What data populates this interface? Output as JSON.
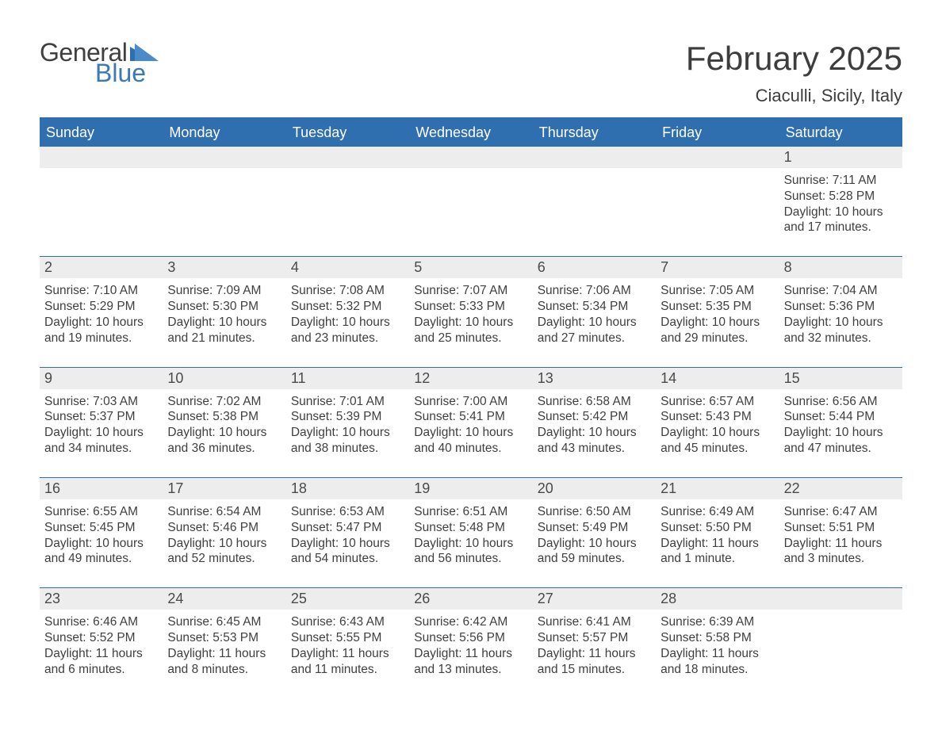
{
  "logo": {
    "text_general": "General",
    "text_blue": "Blue",
    "icon_color": "#2f6fb0"
  },
  "title": "February 2025",
  "location": "Ciaculli, Sicily, Italy",
  "colors": {
    "header_bg": "#2f6fb0",
    "header_text": "#ffffff",
    "daynum_bg": "#ededed",
    "text": "#3f3f3f",
    "rule": "#2f6fb0",
    "background": "#ffffff"
  },
  "weekdays": [
    "Sunday",
    "Monday",
    "Tuesday",
    "Wednesday",
    "Thursday",
    "Friday",
    "Saturday"
  ],
  "weeks": [
    [
      null,
      null,
      null,
      null,
      null,
      null,
      {
        "n": "1",
        "sunrise": "Sunrise: 7:11 AM",
        "sunset": "Sunset: 5:28 PM",
        "daylight": "Daylight: 10 hours and 17 minutes."
      }
    ],
    [
      {
        "n": "2",
        "sunrise": "Sunrise: 7:10 AM",
        "sunset": "Sunset: 5:29 PM",
        "daylight": "Daylight: 10 hours and 19 minutes."
      },
      {
        "n": "3",
        "sunrise": "Sunrise: 7:09 AM",
        "sunset": "Sunset: 5:30 PM",
        "daylight": "Daylight: 10 hours and 21 minutes."
      },
      {
        "n": "4",
        "sunrise": "Sunrise: 7:08 AM",
        "sunset": "Sunset: 5:32 PM",
        "daylight": "Daylight: 10 hours and 23 minutes."
      },
      {
        "n": "5",
        "sunrise": "Sunrise: 7:07 AM",
        "sunset": "Sunset: 5:33 PM",
        "daylight": "Daylight: 10 hours and 25 minutes."
      },
      {
        "n": "6",
        "sunrise": "Sunrise: 7:06 AM",
        "sunset": "Sunset: 5:34 PM",
        "daylight": "Daylight: 10 hours and 27 minutes."
      },
      {
        "n": "7",
        "sunrise": "Sunrise: 7:05 AM",
        "sunset": "Sunset: 5:35 PM",
        "daylight": "Daylight: 10 hours and 29 minutes."
      },
      {
        "n": "8",
        "sunrise": "Sunrise: 7:04 AM",
        "sunset": "Sunset: 5:36 PM",
        "daylight": "Daylight: 10 hours and 32 minutes."
      }
    ],
    [
      {
        "n": "9",
        "sunrise": "Sunrise: 7:03 AM",
        "sunset": "Sunset: 5:37 PM",
        "daylight": "Daylight: 10 hours and 34 minutes."
      },
      {
        "n": "10",
        "sunrise": "Sunrise: 7:02 AM",
        "sunset": "Sunset: 5:38 PM",
        "daylight": "Daylight: 10 hours and 36 minutes."
      },
      {
        "n": "11",
        "sunrise": "Sunrise: 7:01 AM",
        "sunset": "Sunset: 5:39 PM",
        "daylight": "Daylight: 10 hours and 38 minutes."
      },
      {
        "n": "12",
        "sunrise": "Sunrise: 7:00 AM",
        "sunset": "Sunset: 5:41 PM",
        "daylight": "Daylight: 10 hours and 40 minutes."
      },
      {
        "n": "13",
        "sunrise": "Sunrise: 6:58 AM",
        "sunset": "Sunset: 5:42 PM",
        "daylight": "Daylight: 10 hours and 43 minutes."
      },
      {
        "n": "14",
        "sunrise": "Sunrise: 6:57 AM",
        "sunset": "Sunset: 5:43 PM",
        "daylight": "Daylight: 10 hours and 45 minutes."
      },
      {
        "n": "15",
        "sunrise": "Sunrise: 6:56 AM",
        "sunset": "Sunset: 5:44 PM",
        "daylight": "Daylight: 10 hours and 47 minutes."
      }
    ],
    [
      {
        "n": "16",
        "sunrise": "Sunrise: 6:55 AM",
        "sunset": "Sunset: 5:45 PM",
        "daylight": "Daylight: 10 hours and 49 minutes."
      },
      {
        "n": "17",
        "sunrise": "Sunrise: 6:54 AM",
        "sunset": "Sunset: 5:46 PM",
        "daylight": "Daylight: 10 hours and 52 minutes."
      },
      {
        "n": "18",
        "sunrise": "Sunrise: 6:53 AM",
        "sunset": "Sunset: 5:47 PM",
        "daylight": "Daylight: 10 hours and 54 minutes."
      },
      {
        "n": "19",
        "sunrise": "Sunrise: 6:51 AM",
        "sunset": "Sunset: 5:48 PM",
        "daylight": "Daylight: 10 hours and 56 minutes."
      },
      {
        "n": "20",
        "sunrise": "Sunrise: 6:50 AM",
        "sunset": "Sunset: 5:49 PM",
        "daylight": "Daylight: 10 hours and 59 minutes."
      },
      {
        "n": "21",
        "sunrise": "Sunrise: 6:49 AM",
        "sunset": "Sunset: 5:50 PM",
        "daylight": "Daylight: 11 hours and 1 minute."
      },
      {
        "n": "22",
        "sunrise": "Sunrise: 6:47 AM",
        "sunset": "Sunset: 5:51 PM",
        "daylight": "Daylight: 11 hours and 3 minutes."
      }
    ],
    [
      {
        "n": "23",
        "sunrise": "Sunrise: 6:46 AM",
        "sunset": "Sunset: 5:52 PM",
        "daylight": "Daylight: 11 hours and 6 minutes."
      },
      {
        "n": "24",
        "sunrise": "Sunrise: 6:45 AM",
        "sunset": "Sunset: 5:53 PM",
        "daylight": "Daylight: 11 hours and 8 minutes."
      },
      {
        "n": "25",
        "sunrise": "Sunrise: 6:43 AM",
        "sunset": "Sunset: 5:55 PM",
        "daylight": "Daylight: 11 hours and 11 minutes."
      },
      {
        "n": "26",
        "sunrise": "Sunrise: 6:42 AM",
        "sunset": "Sunset: 5:56 PM",
        "daylight": "Daylight: 11 hours and 13 minutes."
      },
      {
        "n": "27",
        "sunrise": "Sunrise: 6:41 AM",
        "sunset": "Sunset: 5:57 PM",
        "daylight": "Daylight: 11 hours and 15 minutes."
      },
      {
        "n": "28",
        "sunrise": "Sunrise: 6:39 AM",
        "sunset": "Sunset: 5:58 PM",
        "daylight": "Daylight: 11 hours and 18 minutes."
      },
      null
    ]
  ]
}
